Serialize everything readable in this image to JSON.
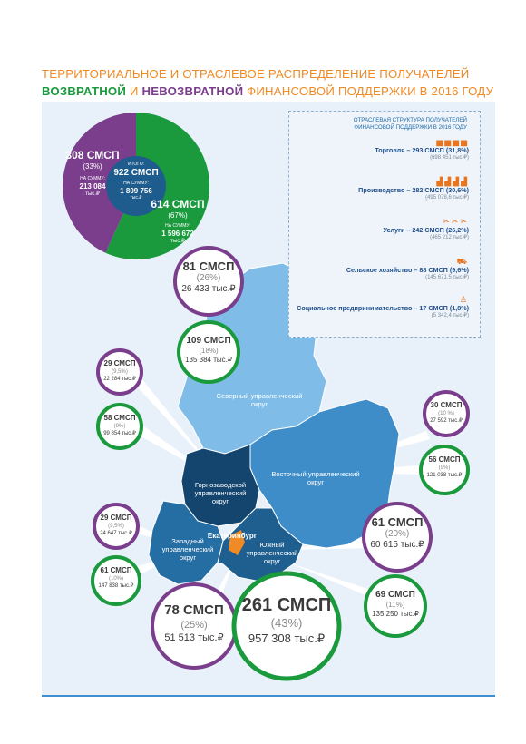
{
  "title": {
    "line1": "ТЕРРИТОРИАЛЬНОЕ И ОТРАСЛЕВОЕ РАСПРЕДЕЛЕНИЕ ПОЛУЧАТЕЛЕЙ",
    "returnable": "ВОЗВРАТНОЙ",
    "and": " И ",
    "nonreturnable": "НЕВОЗВРАТНОЙ",
    "rest": " ФИНАНСОВОЙ ПОДДЕРЖКИ В 2016 ГОДУ"
  },
  "colors": {
    "green": "#1a9a3c",
    "purple": "#7a3e8c",
    "orange": "#f08a24",
    "blue_light": "#6cb1e4",
    "blue_mid": "#3d8bc6",
    "blue_dark": "#1b5c8a",
    "blue_darkest": "#103f66"
  },
  "pie": {
    "purple": {
      "count": "308 СМСП",
      "percent": "(33%)",
      "sum_label": "НА СУММУ:",
      "sum_value": "213 084",
      "sum_unit": "тыс.₽",
      "fraction": 0.33
    },
    "green": {
      "count": "614 СМСП",
      "percent": "(67%)",
      "sum_label": "НА СУММУ:",
      "sum_value": "1 596 672",
      "sum_unit": "тыс.₽",
      "fraction": 0.67
    },
    "center": {
      "label": "ИТОГО:",
      "count": "922 СМСП",
      "sum_label": "НА СУММУ:",
      "sum_value": "1 809 756",
      "sum_unit": "тыс.₽"
    }
  },
  "sectors": {
    "title_line1": "ОТРАСЛЕВАЯ СТРУКТУРА ПОЛУЧАТЕЛЕЙ",
    "title_line2": "ФИНАНСОВОЙ ПОДДЕРЖКИ В 2016 ГОДУ",
    "items": [
      {
        "icons": "▅▅▅▅",
        "label": "Торговля – 293 СМСП (31,8%)",
        "sum": "(698 451 тыс.₽)"
      },
      {
        "icons": "▟▟▟▟",
        "label": "Производство – 282 СМСП (30,6%)",
        "sum": "(495 078,6 тыс.₽)"
      },
      {
        "icons": "✂✂✂",
        "label": "Услуги – 242 СМСП (26,2%)",
        "sum": "(465 212 тыс.₽)"
      },
      {
        "icons": "⛟",
        "label": "Сельское хозяйство – 88 СМСП (9,6%)",
        "sum": "(145 671,5 тыс.₽)"
      },
      {
        "icons": "♙",
        "label": "Социальное предпринимательство – 17 СМСП (1,8%)",
        "sum": "(5 342,4 тыс.₽)"
      }
    ]
  },
  "regions": {
    "north": "Северный управленческий округ",
    "east": "Восточный управленческий округ",
    "gorno": "Горнозаводской управленческий округ",
    "west": "Западный управленческий округ",
    "south": "Южный управленческий округ",
    "city": "Екатеринбург"
  },
  "circles": [
    {
      "id": "north-purple",
      "count": "81 СМСП",
      "percent": "(26%)",
      "sum": "26 433 тыс.₽"
    },
    {
      "id": "north-green",
      "count": "109 СМСП",
      "percent": "(18%)",
      "sum": "135 384 тыс.₽"
    },
    {
      "id": "gorno-purple",
      "count": "29 СМСП",
      "percent": "(9,5%)",
      "sum": "22 284 тыс.₽"
    },
    {
      "id": "gorno-green",
      "count": "58 СМСП",
      "percent": "(9%)",
      "sum": "99 854 тыс.₽"
    },
    {
      "id": "east-purple",
      "count": "30 СМСП",
      "percent": "(10 %)",
      "sum": "27 592 тыс.₽"
    },
    {
      "id": "east-green",
      "count": "56 СМСП",
      "percent": "(9%)",
      "sum": "121 038 тыс.₽"
    },
    {
      "id": "west-purple",
      "count": "29 СМСП",
      "percent": "(9,5%)",
      "sum": "24 647 тыс.₽"
    },
    {
      "id": "west-green",
      "count": "61 СМСП",
      "percent": "(10%)",
      "sum": "147 838 тыс.₽"
    },
    {
      "id": "south-purple",
      "count": "61 СМСП",
      "percent": "(20%)",
      "sum": "60 615 тыс.₽"
    },
    {
      "id": "south-green",
      "count": "69 СМСП",
      "percent": "(11%)",
      "sum": "135 250 тыс.₽"
    },
    {
      "id": "city-purple",
      "count": "78 СМСП",
      "percent": "(25%)",
      "sum": "51 513 тыс.₽"
    },
    {
      "id": "city-green",
      "count": "261 СМСП",
      "percent": "(43%)",
      "sum": "957 308 тыс.₽"
    }
  ]
}
